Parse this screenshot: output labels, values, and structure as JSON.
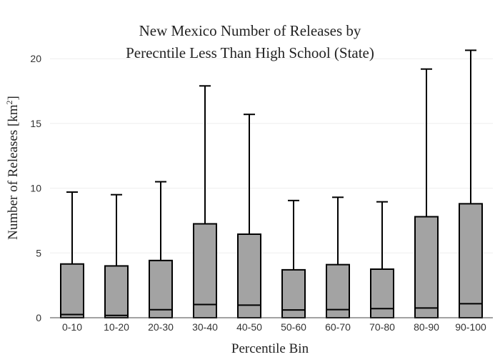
{
  "chart_data": {
    "type": "box",
    "title_line1": "New Mexico Number of Releases by",
    "title_line2": "Perecntile Less Than High School (State)",
    "xlabel": "Percentile Bin",
    "ylabel": "Number of Releases  [km",
    "ylabel_sup": "2",
    "ylabel_close": "]",
    "ylim": [
      0,
      21.5
    ],
    "yticks": [
      0,
      5,
      10,
      15,
      20
    ],
    "grid": true,
    "categories": [
      "0-10",
      "10-20",
      "20-30",
      "30-40",
      "40-50",
      "50-60",
      "60-70",
      "70-80",
      "80-90",
      "90-100"
    ],
    "boxes": [
      {
        "min": 0,
        "q1": 0,
        "median": 0.25,
        "q3": 4.15,
        "max": 9.7
      },
      {
        "min": 0,
        "q1": 0,
        "median": 0.18,
        "q3": 4.0,
        "max": 9.5
      },
      {
        "min": 0,
        "q1": 0,
        "median": 0.62,
        "q3": 4.42,
        "max": 10.5
      },
      {
        "min": 0,
        "q1": 0,
        "median": 1.02,
        "q3": 7.25,
        "max": 17.9
      },
      {
        "min": 0,
        "q1": 0,
        "median": 0.97,
        "q3": 6.45,
        "max": 15.7
      },
      {
        "min": 0,
        "q1": 0,
        "median": 0.6,
        "q3": 3.7,
        "max": 9.05
      },
      {
        "min": 0,
        "q1": 0,
        "median": 0.63,
        "q3": 4.1,
        "max": 9.3
      },
      {
        "min": 0,
        "q1": 0,
        "median": 0.7,
        "q3": 3.75,
        "max": 8.95
      },
      {
        "min": 0,
        "q1": 0,
        "median": 0.75,
        "q3": 7.8,
        "max": 19.2
      },
      {
        "min": 0,
        "q1": 0,
        "median": 1.08,
        "q3": 8.8,
        "max": 20.65
      }
    ],
    "box_color": "#a3a3a3"
  }
}
